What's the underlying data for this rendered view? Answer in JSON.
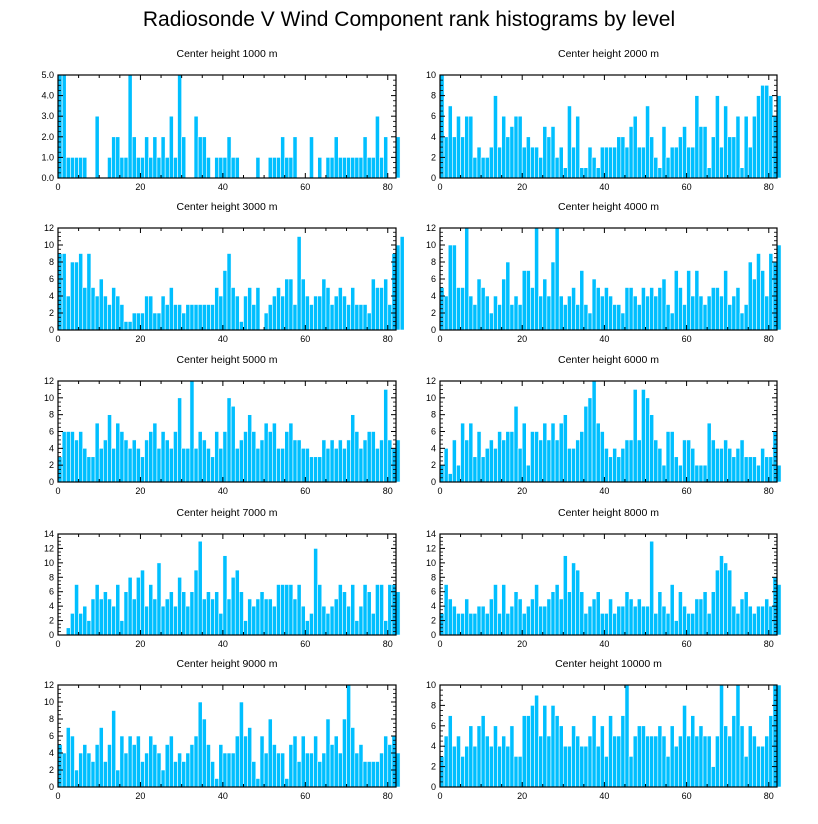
{
  "figure": {
    "title": "Radiosonde V Wind Component rank histograms by level",
    "bar_color": "#00bfff",
    "bar_edge_color": "#ffffff",
    "axis_color": "#000000"
  },
  "chart_data": [
    {
      "type": "bar",
      "title": "Center height 1000 m",
      "x_range": [
        0,
        82
      ],
      "xticks": [
        0,
        20,
        40,
        60,
        80
      ],
      "ylim": [
        0,
        5
      ],
      "yticks": [
        0,
        1,
        2,
        3,
        4,
        5
      ],
      "ytick_labels": [
        "0.0",
        "1.0",
        "2.0",
        "3.0",
        "4.0",
        "5.0"
      ],
      "values": [
        5,
        5,
        1,
        1,
        1,
        1,
        1,
        0,
        0,
        3,
        0,
        0,
        1,
        2,
        2,
        1,
        1,
        5,
        2,
        1,
        1,
        2,
        1,
        2,
        1,
        2,
        1,
        3,
        1,
        5,
        2,
        0,
        0,
        3,
        2,
        2,
        1,
        0,
        1,
        1,
        1,
        2,
        1,
        1,
        0,
        0,
        0,
        0,
        1,
        0,
        0,
        1,
        1,
        1,
        2,
        1,
        1,
        2,
        0,
        0,
        0,
        2,
        0,
        1,
        0,
        1,
        1,
        2,
        1,
        1,
        1,
        1,
        1,
        1,
        2,
        1,
        1,
        3,
        1,
        2,
        0,
        0,
        2
      ]
    },
    {
      "type": "bar",
      "title": "Center height 2000 m",
      "x_range": [
        0,
        82
      ],
      "xticks": [
        0,
        20,
        40,
        60,
        80
      ],
      "ylim": [
        0,
        10
      ],
      "yticks": [
        0,
        2,
        4,
        6,
        8,
        10
      ],
      "ytick_labels": [
        "0",
        "2",
        "4",
        "6",
        "8",
        "10"
      ],
      "values": [
        10,
        4,
        7,
        4,
        6,
        4,
        6,
        6,
        2,
        3,
        2,
        2,
        3,
        8,
        3,
        6,
        4,
        5,
        6,
        6,
        3,
        4,
        3,
        3,
        2,
        5,
        4,
        5,
        2,
        3,
        1,
        7,
        3,
        6,
        1,
        1,
        3,
        2,
        1,
        3,
        3,
        3,
        3,
        4,
        4,
        3,
        5,
        6,
        3,
        3,
        7,
        4,
        2,
        1,
        5,
        2,
        3,
        3,
        4,
        5,
        3,
        3,
        8,
        5,
        5,
        1,
        4,
        8,
        3,
        7,
        4,
        4,
        6,
        1,
        6,
        3,
        6,
        8,
        9,
        9,
        8,
        6,
        8
      ]
    },
    {
      "type": "bar",
      "title": "Center height 3000 m",
      "x_range": [
        0,
        82
      ],
      "xticks": [
        0,
        20,
        40,
        60,
        80
      ],
      "ylim": [
        0,
        12
      ],
      "yticks": [
        0,
        2,
        4,
        6,
        8,
        10,
        12
      ],
      "ytick_labels": [
        "0",
        "2",
        "4",
        "6",
        "8",
        "10",
        "12"
      ],
      "values": [
        9,
        9,
        4,
        8,
        8,
        9,
        5,
        9,
        5,
        4,
        6,
        4,
        3,
        5,
        4,
        3,
        1,
        1,
        2,
        2,
        2,
        4,
        4,
        2,
        2,
        4,
        3,
        5,
        3,
        3,
        2,
        3,
        3,
        3,
        3,
        3,
        3,
        3,
        5,
        4,
        7,
        9,
        5,
        4,
        1,
        4,
        5,
        3,
        5,
        0,
        2,
        3,
        4,
        5,
        4,
        6,
        6,
        3,
        11,
        6,
        4,
        3,
        4,
        4,
        6,
        5,
        3,
        4,
        5,
        4,
        3,
        5,
        3,
        3,
        3,
        2,
        6,
        5,
        5,
        6,
        3,
        9,
        10,
        11
      ]
    },
    {
      "type": "bar",
      "title": "Center height 4000 m",
      "x_range": [
        0,
        82
      ],
      "xticks": [
        0,
        20,
        40,
        60,
        80
      ],
      "ylim": [
        0,
        12
      ],
      "yticks": [
        0,
        2,
        4,
        6,
        8,
        10,
        12
      ],
      "ytick_labels": [
        "0",
        "2",
        "4",
        "6",
        "8",
        "10",
        "12"
      ],
      "values": [
        5,
        4,
        10,
        10,
        5,
        5,
        12,
        4,
        3,
        6,
        5,
        4,
        2,
        4,
        3,
        6,
        8,
        3,
        4,
        3,
        7,
        7,
        5,
        12,
        4,
        6,
        4,
        8,
        12,
        4,
        3,
        4,
        5,
        3,
        7,
        3,
        2,
        6,
        5,
        4,
        5,
        4,
        3,
        3,
        2,
        5,
        5,
        4,
        3,
        5,
        4,
        5,
        4,
        5,
        6,
        3,
        2,
        7,
        5,
        3,
        7,
        4,
        7,
        4,
        3,
        4,
        5,
        5,
        4,
        7,
        3,
        4,
        5,
        2,
        3,
        8,
        6,
        9,
        7,
        4,
        9,
        8,
        10
      ]
    },
    {
      "type": "bar",
      "title": "Center height 5000 m",
      "x_range": [
        0,
        82
      ],
      "xticks": [
        0,
        20,
        40,
        60,
        80
      ],
      "ylim": [
        0,
        12
      ],
      "yticks": [
        0,
        2,
        4,
        6,
        8,
        10,
        12
      ],
      "ytick_labels": [
        "0",
        "2",
        "4",
        "6",
        "8",
        "10",
        "12"
      ],
      "values": [
        3,
        6,
        6,
        6,
        5,
        6,
        4,
        3,
        3,
        7,
        4,
        5,
        8,
        4,
        7,
        6,
        5,
        4,
        5,
        4,
        3,
        5,
        6,
        7,
        4,
        6,
        5,
        4,
        6,
        10,
        4,
        4,
        12,
        4,
        6,
        5,
        4,
        3,
        6,
        4,
        6,
        10,
        9,
        4,
        5,
        6,
        8,
        6,
        4,
        5,
        7,
        6,
        7,
        4,
        4,
        6,
        7,
        5,
        5,
        4,
        4,
        3,
        3,
        3,
        5,
        4,
        5,
        4,
        5,
        4,
        5,
        8,
        6,
        4,
        5,
        6,
        6,
        4,
        5,
        11,
        5,
        4,
        5
      ]
    },
    {
      "type": "bar",
      "title": "Center height 6000 m",
      "x_range": [
        0,
        82
      ],
      "xticks": [
        0,
        20,
        40,
        60,
        80
      ],
      "ylim": [
        0,
        12
      ],
      "yticks": [
        0,
        2,
        4,
        6,
        8,
        10,
        12
      ],
      "ytick_labels": [
        "0",
        "2",
        "4",
        "6",
        "8",
        "10",
        "12"
      ],
      "values": [
        2,
        4,
        1,
        5,
        2,
        7,
        5,
        7,
        3,
        6,
        3,
        4,
        5,
        4,
        6,
        5,
        6,
        6,
        9,
        4,
        7,
        2,
        6,
        6,
        5,
        7,
        5,
        7,
        5,
        7,
        8,
        4,
        4,
        5,
        6,
        9,
        10,
        12,
        7,
        6,
        4,
        3,
        4,
        3,
        4,
        5,
        5,
        11,
        5,
        11,
        10,
        8,
        5,
        4,
        2,
        6,
        6,
        3,
        2,
        5,
        5,
        4,
        2,
        2,
        2,
        7,
        5,
        4,
        4,
        5,
        4,
        3,
        4,
        5,
        3,
        3,
        3,
        2,
        4,
        3,
        3,
        6,
        2
      ]
    },
    {
      "type": "bar",
      "title": "Center height 7000 m",
      "x_range": [
        0,
        82
      ],
      "xticks": [
        0,
        20,
        40,
        60,
        80
      ],
      "ylim": [
        0,
        14
      ],
      "yticks": [
        0,
        2,
        4,
        6,
        8,
        10,
        12,
        14
      ],
      "ytick_labels": [
        "0",
        "2",
        "4",
        "6",
        "8",
        "10",
        "12",
        "14"
      ],
      "values": [
        0,
        0,
        1,
        3,
        7,
        3,
        4,
        2,
        5,
        7,
        5,
        6,
        5,
        4,
        7,
        2,
        6,
        8,
        5,
        8,
        9,
        4,
        7,
        5,
        10,
        4,
        5,
        6,
        4,
        8,
        6,
        4,
        6,
        9,
        13,
        5,
        6,
        5,
        6,
        3,
        11,
        5,
        8,
        9,
        6,
        2,
        5,
        4,
        5,
        6,
        5,
        5,
        4,
        7,
        7,
        7,
        7,
        5,
        7,
        4,
        2,
        3,
        12,
        7,
        4,
        3,
        4,
        5,
        7,
        6,
        4,
        7,
        2,
        4,
        7,
        6,
        3,
        7,
        7,
        2,
        7,
        7,
        6
      ]
    },
    {
      "type": "bar",
      "title": "Center height 8000 m",
      "x_range": [
        0,
        82
      ],
      "xticks": [
        0,
        20,
        40,
        60,
        80
      ],
      "ylim": [
        0,
        14
      ],
      "yticks": [
        0,
        2,
        4,
        6,
        8,
        10,
        12,
        14
      ],
      "ytick_labels": [
        "0",
        "2",
        "4",
        "6",
        "8",
        "10",
        "12",
        "14"
      ],
      "values": [
        3,
        7,
        5,
        4,
        3,
        3,
        5,
        3,
        3,
        4,
        4,
        3,
        5,
        7,
        3,
        7,
        3,
        4,
        6,
        5,
        3,
        4,
        5,
        7,
        4,
        4,
        5,
        6,
        7,
        5,
        11,
        6,
        10,
        9,
        6,
        3,
        4,
        5,
        6,
        3,
        3,
        5,
        3,
        4,
        4,
        6,
        5,
        4,
        5,
        4,
        4,
        13,
        3,
        6,
        4,
        3,
        7,
        2,
        6,
        4,
        3,
        3,
        5,
        5,
        6,
        3,
        6,
        9,
        11,
        10,
        9,
        4,
        3,
        5,
        6,
        4,
        3,
        4,
        4,
        5,
        4,
        8,
        7
      ]
    },
    {
      "type": "bar",
      "title": "Center height 9000 m",
      "x_range": [
        0,
        82
      ],
      "xticks": [
        0,
        20,
        40,
        60,
        80
      ],
      "ylim": [
        0,
        12
      ],
      "yticks": [
        0,
        2,
        4,
        6,
        8,
        10,
        12
      ],
      "ytick_labels": [
        "0",
        "2",
        "4",
        "6",
        "8",
        "10",
        "12"
      ],
      "values": [
        5,
        4,
        7,
        6,
        2,
        4,
        5,
        4,
        3,
        5,
        7,
        3,
        5,
        9,
        2,
        6,
        4,
        6,
        5,
        6,
        3,
        4,
        6,
        5,
        4,
        2,
        5,
        6,
        3,
        4,
        3,
        4,
        5,
        6,
        10,
        8,
        5,
        3,
        1,
        5,
        4,
        4,
        4,
        6,
        10,
        6,
        7,
        3,
        1,
        6,
        4,
        8,
        5,
        4,
        4,
        1,
        5,
        6,
        3,
        6,
        4,
        4,
        6,
        3,
        4,
        8,
        5,
        6,
        4,
        8,
        12,
        7,
        4,
        5,
        3,
        3,
        3,
        3,
        4,
        6,
        5,
        6,
        4
      ]
    },
    {
      "type": "bar",
      "title": "Center height 10000 m",
      "x_range": [
        0,
        82
      ],
      "xticks": [
        0,
        20,
        40,
        60,
        80
      ],
      "ylim": [
        0,
        10
      ],
      "yticks": [
        0,
        2,
        4,
        6,
        8,
        10
      ],
      "ytick_labels": [
        "0",
        "2",
        "4",
        "6",
        "8",
        "10"
      ],
      "values": [
        3,
        5,
        7,
        4,
        5,
        3,
        4,
        6,
        4,
        6,
        7,
        5,
        4,
        6,
        4,
        5,
        4,
        6,
        3,
        3,
        7,
        7,
        8,
        9,
        5,
        8,
        5,
        8,
        7,
        6,
        4,
        4,
        6,
        5,
        4,
        4,
        5,
        7,
        4,
        6,
        3,
        7,
        5,
        5,
        7,
        10,
        3,
        5,
        6,
        6,
        5,
        5,
        5,
        6,
        5,
        3,
        6,
        4,
        5,
        8,
        5,
        7,
        5,
        6,
        5,
        5,
        2,
        5,
        10,
        6,
        5,
        7,
        10,
        6,
        3,
        6,
        5,
        4,
        4,
        5,
        7,
        10,
        10
      ]
    }
  ]
}
